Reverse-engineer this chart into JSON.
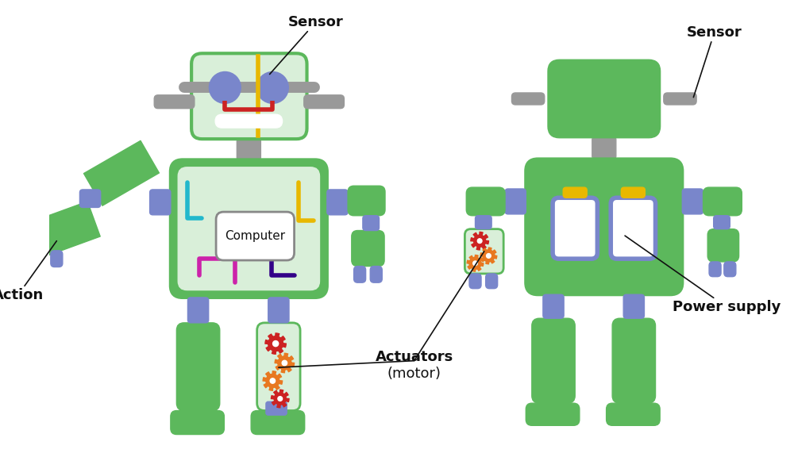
{
  "bg_color": "#ffffff",
  "green_dark": "#5cb85c",
  "green_light": "#d9efd9",
  "gray": "#999999",
  "blue_gray": "#7986cb",
  "white": "#ffffff",
  "red": "#cc2222",
  "orange": "#e87820",
  "yellow": "#e8b800",
  "cyan": "#22b8cc",
  "magenta": "#cc22aa",
  "purple": "#330088",
  "black": "#111111",
  "labels": {
    "sensor_front": "Sensor",
    "sensor_back": "Sensor",
    "action": "Action",
    "actuators_line1": "Actuators",
    "actuators_line2": "(motor)",
    "power_supply": "Power supply",
    "computer": "Computer"
  }
}
